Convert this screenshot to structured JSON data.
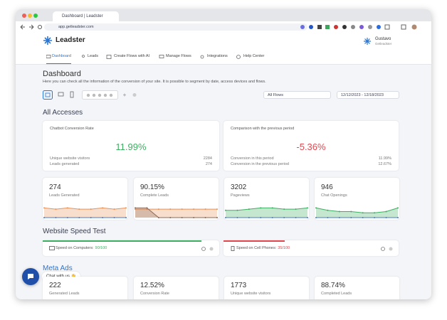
{
  "browser": {
    "tab_title": "Dashboard | Leadster",
    "url": "app.getleadster.com"
  },
  "header": {
    "logo": "Leadster",
    "user_name": "Gustavo",
    "user_company": "Getleadster"
  },
  "nav": [
    "Dashboard",
    "Leads",
    "Create Flows with AI",
    "Manage Flows",
    "Integrations",
    "Help Center"
  ],
  "page": {
    "title": "Dashboard",
    "subtitle": "Here you can check all the information of the conversion of your site. It is possible to segment by date, access devices and flows.",
    "flow_filter": "All Flows",
    "date_range": "12/12/2023 - 12/18/2023"
  },
  "all_accesses": {
    "title": "All Accesses",
    "conversion": {
      "title": "Chatbot Conversion Rate",
      "value": "11.99%",
      "rows": [
        [
          "Unique website visitors",
          "2284"
        ],
        [
          "Leads generated",
          "274"
        ]
      ]
    },
    "comparison": {
      "title": "Comparison with the previous period",
      "value": "-5.36%",
      "rows": [
        [
          "Conversion in this period",
          "11.99%"
        ],
        [
          "Conversion in the previous period",
          "12.67%"
        ]
      ]
    },
    "metrics": [
      {
        "value": "274",
        "label": "Leads Generated",
        "sparkline": {
          "ylim": [
            0,
            10
          ],
          "series": [
            {
              "color": "#e8925a",
              "values": [
                8,
                7,
                8,
                7,
                7,
                8,
                7,
                8
              ]
            },
            {
              "color": "#4a7bd0",
              "values": [
                0,
                0,
                0,
                0,
                0,
                0,
                0,
                0
              ]
            }
          ]
        }
      },
      {
        "value": "90.15%",
        "label": "Complete Leads",
        "sparkline": {
          "ylim": [
            0,
            10
          ],
          "series": [
            {
              "color": "#e8925a",
              "values": [
                7,
                7,
                7,
                7,
                7,
                7,
                7,
                7
              ]
            },
            {
              "color": "#8a6a58",
              "values": [
                8,
                8,
                0,
                0,
                0,
                0,
                0,
                0
              ]
            }
          ]
        }
      },
      {
        "value": "3202",
        "label": "Pageviews",
        "sparkline": {
          "ylim": [
            0,
            10
          ],
          "series": [
            {
              "color": "#3fae62",
              "values": [
                6,
                6,
                7,
                8,
                8,
                7,
                7,
                8
              ]
            },
            {
              "color": "#4a7bd0",
              "values": [
                0,
                0,
                0,
                0,
                0,
                0,
                0,
                0
              ]
            }
          ]
        }
      },
      {
        "value": "946",
        "label": "Chat Openings",
        "sparkline": {
          "ylim": [
            0,
            10
          ],
          "series": [
            {
              "color": "#3fae62",
              "values": [
                8,
                6,
                5,
                5,
                4,
                4,
                5,
                8
              ]
            },
            {
              "color": "#4a7bd0",
              "values": [
                0,
                0,
                0,
                0,
                0,
                0,
                0,
                0
              ]
            }
          ]
        }
      }
    ]
  },
  "speed_test": {
    "title": "Website Speed Test",
    "items": [
      {
        "label": "Speed on Computers:",
        "score": {
          "value": 90,
          "label": "90/100"
        },
        "color": "#3fae62"
      },
      {
        "label": "Speed on Cell Phones:",
        "score": {
          "value": 35,
          "label": "35/100"
        },
        "color": "#e0484f"
      }
    ]
  },
  "meta_ads": {
    "title": "Meta Ads",
    "metrics": [
      {
        "value": "222",
        "label": "Generated Leads"
      },
      {
        "value": "12.52%",
        "label": "Conversion Rate"
      },
      {
        "value": "1773",
        "label": "Unique website visitors"
      },
      {
        "value": "88.74%",
        "label": "Completed Leads"
      }
    ]
  },
  "chat": {
    "label": "Chat with us 👋"
  }
}
